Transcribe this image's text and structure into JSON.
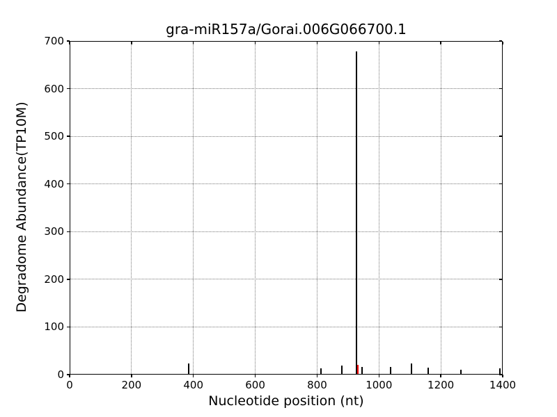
{
  "chart_data": {
    "type": "bar",
    "title": "gra-miR157a/Gorai.006G066700.1",
    "xlabel": "Nucleotide position (nt)",
    "ylabel": "Degradome Abundance(TP10M)",
    "xlim": [
      0,
      1400
    ],
    "ylim": [
      0,
      700
    ],
    "xticks": [
      0,
      200,
      400,
      600,
      800,
      1000,
      1200,
      1400
    ],
    "yticks": [
      0,
      100,
      200,
      300,
      400,
      500,
      600,
      700
    ],
    "grid": "dotted",
    "legend": "none",
    "bar_color_default": "#000000",
    "highlight_color": "#ff0000",
    "points": [
      {
        "x": 385,
        "y": 22,
        "color": "#000000"
      },
      {
        "x": 813,
        "y": 12,
        "color": "#000000"
      },
      {
        "x": 882,
        "y": 17,
        "color": "#000000"
      },
      {
        "x": 929,
        "y": 677,
        "color": "#000000"
      },
      {
        "x": 934,
        "y": 19,
        "color": "#ff0000"
      },
      {
        "x": 946,
        "y": 15,
        "color": "#000000"
      },
      {
        "x": 1038,
        "y": 15,
        "color": "#000000"
      },
      {
        "x": 1106,
        "y": 22,
        "color": "#000000"
      },
      {
        "x": 1160,
        "y": 13,
        "color": "#000000"
      },
      {
        "x": 1265,
        "y": 9,
        "color": "#000000"
      },
      {
        "x": 1393,
        "y": 11,
        "color": "#000000"
      }
    ]
  }
}
